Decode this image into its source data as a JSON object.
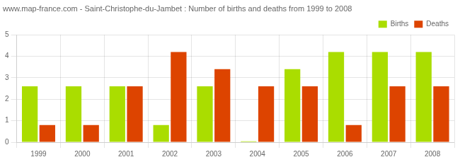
{
  "chart_data": {
    "type": "bar",
    "title": "www.map-france.com - Saint-Christophe-du-Jambet : Number of births and deaths from 1999 to 2008",
    "categories": [
      "1999",
      "2000",
      "2001",
      "2002",
      "2003",
      "2004",
      "2005",
      "2006",
      "2007",
      "2008"
    ],
    "series": [
      {
        "name": "Births",
        "color": "#aadd00",
        "values": [
          2.6,
          2.6,
          2.6,
          0.8,
          2.6,
          0.04,
          3.4,
          4.2,
          4.2,
          4.2
        ]
      },
      {
        "name": "Deaths",
        "color": "#dd4400",
        "values": [
          0.8,
          0.8,
          2.6,
          4.2,
          3.4,
          2.6,
          2.6,
          0.8,
          2.6,
          2.6
        ]
      }
    ],
    "ylim": [
      0,
      5
    ],
    "yticks": [
      0,
      1,
      2,
      3,
      4,
      5
    ],
    "grid": true,
    "legend": "upper right"
  }
}
